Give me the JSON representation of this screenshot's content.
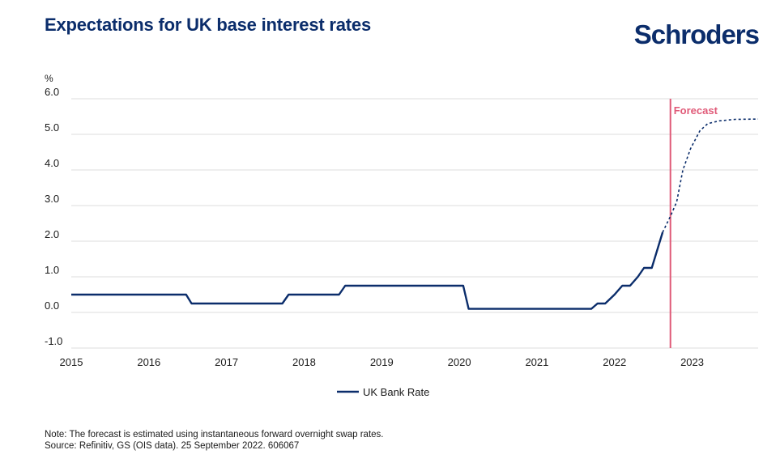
{
  "header": {
    "title": "Expectations for UK base interest rates",
    "brand": "Schroders"
  },
  "colors": {
    "series": "#0b2d6b",
    "forecast_line": "#e05a78",
    "grid": "#dddddd",
    "text": "#1a1a1a"
  },
  "chart_data": {
    "type": "line",
    "title": "Expectations for UK base interest rates",
    "ylabel": "%",
    "xlabel": "",
    "ylim": [
      -1.0,
      6.0
    ],
    "yticks": [
      -1.0,
      0.0,
      1.0,
      2.0,
      3.0,
      4.0,
      5.0,
      6.0
    ],
    "ytick_labels": [
      "-1.0",
      "0.0",
      "1.0",
      "2.0",
      "3.0",
      "4.0",
      "5.0",
      "6.0"
    ],
    "xlim": [
      2015.0,
      2023.85
    ],
    "xticks": [
      2015,
      2016,
      2017,
      2018,
      2019,
      2020,
      2021,
      2022,
      2023
    ],
    "xtick_labels": [
      "2015",
      "2016",
      "2017",
      "2018",
      "2019",
      "2020",
      "2021",
      "2022",
      "2023"
    ],
    "grid": true,
    "forecast_start": 2022.72,
    "forecast_label": "Forecast",
    "legend": {
      "position": "bottom-center",
      "label": "UK Bank Rate"
    },
    "series": [
      {
        "name": "UK Bank Rate",
        "style": "solid",
        "x": [
          2015.0,
          2016.48,
          2016.55,
          2017.72,
          2017.8,
          2018.45,
          2018.53,
          2020.05,
          2020.12,
          2021.7,
          2021.78,
          2021.88,
          2022.0,
          2022.1,
          2022.2,
          2022.3,
          2022.38,
          2022.48,
          2022.62
        ],
        "y": [
          0.5,
          0.5,
          0.25,
          0.25,
          0.5,
          0.5,
          0.75,
          0.75,
          0.1,
          0.1,
          0.25,
          0.25,
          0.5,
          0.75,
          0.75,
          1.0,
          1.25,
          1.25,
          2.25
        ]
      },
      {
        "name": "Forecast",
        "style": "dashed",
        "x": [
          2022.62,
          2022.72,
          2022.8,
          2022.88,
          2022.98,
          2023.1,
          2023.2,
          2023.35,
          2023.55,
          2023.85
        ],
        "y": [
          2.25,
          2.7,
          3.1,
          4.0,
          4.6,
          5.1,
          5.3,
          5.38,
          5.42,
          5.43
        ]
      }
    ]
  },
  "footer": {
    "note": "Note: The forecast is estimated using instantaneous forward overnight swap rates.",
    "source": "Source: Refinitiv, GS (OIS data). 25 September 2022. 606067"
  }
}
